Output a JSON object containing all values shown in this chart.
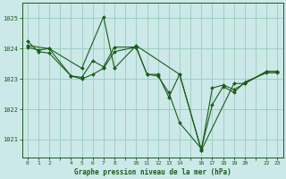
{
  "bg_color": "#cce8e8",
  "line_color": "#1a5c1a",
  "grid_color": "#99ccbb",
  "title": "Graphe pression niveau de la mer (hPa)",
  "title_color": "#1a5c1a",
  "ylabel_ticks": [
    1021,
    1022,
    1023,
    1024,
    1025
  ],
  "xtick_labels": [
    "0",
    "1",
    "2",
    "",
    "4",
    "5",
    "6",
    "7",
    "8",
    "",
    "10",
    "11",
    "12",
    "13",
    "14",
    "",
    "16",
    "17",
    "18",
    "19",
    "20",
    "",
    "22",
    "23"
  ],
  "xtick_positions": [
    0,
    1,
    2,
    3,
    4,
    5,
    6,
    7,
    8,
    9,
    10,
    11,
    12,
    13,
    14,
    15,
    16,
    17,
    18,
    19,
    20,
    21,
    22,
    23
  ],
  "series1_x": [
    0,
    1,
    2,
    4,
    5,
    6,
    7,
    8,
    10,
    11,
    12,
    13,
    14,
    16,
    17,
    18,
    19,
    20,
    22,
    23
  ],
  "series1_y": [
    1024.25,
    1023.9,
    1023.85,
    1023.1,
    1023.0,
    1023.15,
    1023.35,
    1023.9,
    1024.05,
    1023.15,
    1023.1,
    1022.55,
    1021.55,
    1020.7,
    1022.15,
    1022.75,
    1022.55,
    1022.9,
    1023.2,
    1023.2
  ],
  "series2_x": [
    0,
    1,
    2,
    4,
    5,
    6,
    7,
    8,
    10,
    11,
    12,
    13,
    14,
    16,
    17,
    18,
    19,
    20,
    22,
    23
  ],
  "series2_y": [
    1024.05,
    1023.95,
    1024.0,
    1023.1,
    1023.05,
    1023.6,
    1023.4,
    1024.05,
    1024.05,
    1023.15,
    1023.15,
    1022.4,
    1023.15,
    1020.65,
    1022.7,
    1022.8,
    1022.65,
    1022.85,
    1023.25,
    1023.25
  ],
  "series3_x": [
    0,
    2,
    5,
    7,
    8,
    10,
    14,
    16,
    19,
    20,
    22,
    23
  ],
  "series3_y": [
    1024.1,
    1024.0,
    1023.35,
    1025.05,
    1023.35,
    1024.1,
    1023.15,
    1020.65,
    1022.85,
    1022.85,
    1023.25,
    1023.25
  ],
  "ylim": [
    1020.4,
    1025.5
  ],
  "xlim": [
    -0.5,
    23.5
  ],
  "figsize": [
    3.2,
    2.0
  ],
  "dpi": 100
}
